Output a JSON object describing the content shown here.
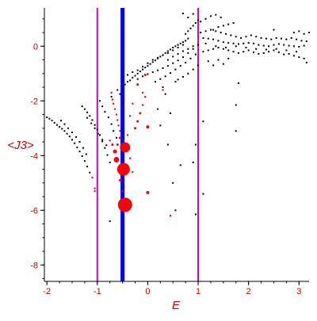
{
  "chart_data": {
    "type": "scatter",
    "xlabel": "E",
    "ylabel": "<J3>",
    "xlim": [
      -2.05,
      3.2
    ],
    "ylim": [
      -8.6,
      1.4
    ],
    "x_ticks": [
      -2,
      -1,
      0,
      1,
      2,
      3
    ],
    "y_ticks": [
      0,
      -2,
      -4,
      -6,
      -8
    ],
    "grid": false,
    "vertical_lines": [
      {
        "x": -1.0,
        "color": "#cc00cc"
      },
      {
        "x": -0.5,
        "color": "#0000ff"
      },
      {
        "x": 1.0,
        "color": "#cc00cc"
      }
    ],
    "series": [
      {
        "color": "#000000",
        "marker": "dot",
        "points": [
          [
            -2.0,
            -2.6
          ],
          [
            -1.95,
            -2.65
          ],
          [
            -1.9,
            -2.72
          ],
          [
            -1.85,
            -2.8
          ],
          [
            -1.8,
            -2.88
          ],
          [
            -1.75,
            -2.95
          ],
          [
            -1.7,
            -3.02
          ],
          [
            -1.65,
            -3.1
          ],
          [
            -1.6,
            -3.2
          ],
          [
            -1.55,
            -3.3
          ],
          [
            -1.5,
            -3.42
          ],
          [
            -1.45,
            -3.55
          ],
          [
            -1.4,
            -3.7
          ],
          [
            -1.35,
            -3.85
          ],
          [
            -1.3,
            -4.02
          ],
          [
            -1.25,
            -4.2
          ],
          [
            -1.2,
            -4.4
          ],
          [
            -1.15,
            -4.62
          ],
          [
            -1.72,
            -2.72
          ],
          [
            -1.65,
            -2.85
          ],
          [
            -1.58,
            -3.0
          ],
          [
            -1.5,
            -3.15
          ],
          [
            -1.42,
            -3.32
          ],
          [
            -1.35,
            -3.5
          ],
          [
            -1.28,
            -3.72
          ],
          [
            -1.22,
            -3.95
          ],
          [
            -1.3,
            -2.2
          ],
          [
            -1.25,
            -2.3
          ],
          [
            -1.2,
            -2.42
          ],
          [
            -1.15,
            -2.55
          ],
          [
            -1.1,
            -2.7
          ],
          [
            -1.05,
            -2.88
          ],
          [
            -1.0,
            -3.05
          ],
          [
            -0.95,
            -3.25
          ],
          [
            -0.9,
            -3.48
          ],
          [
            -0.85,
            -3.72
          ],
          [
            -0.8,
            -3.98
          ],
          [
            -0.75,
            -4.25
          ],
          [
            -1.2,
            -2.62
          ],
          [
            -1.12,
            -2.82
          ],
          [
            -1.05,
            -3.0
          ],
          [
            -0.98,
            -3.2
          ],
          [
            -0.9,
            -3.42
          ],
          [
            -0.82,
            -3.62
          ],
          [
            -0.95,
            -2.0
          ],
          [
            -0.9,
            -2.2
          ],
          [
            -0.85,
            -2.4
          ],
          [
            -0.78,
            -2.6
          ],
          [
            -0.72,
            -2.85
          ],
          [
            -0.68,
            -3.1
          ],
          [
            -0.62,
            -3.35
          ],
          [
            -0.75,
            -6.4
          ],
          [
            -0.72,
            -1.85
          ],
          [
            -0.55,
            -1.75
          ],
          [
            -0.5,
            -2.1
          ],
          [
            -0.6,
            -1.6
          ],
          [
            -0.5,
            -1.5
          ],
          [
            -0.45,
            -1.4
          ],
          [
            -0.4,
            -1.3
          ],
          [
            -0.35,
            -1.25
          ],
          [
            -0.3,
            -1.15
          ],
          [
            -0.25,
            -1.08
          ],
          [
            -0.2,
            -1.0
          ],
          [
            -0.15,
            -0.92
          ],
          [
            -0.1,
            -0.85
          ],
          [
            -0.05,
            -0.78
          ],
          [
            0.0,
            -0.72
          ],
          [
            0.05,
            -0.65
          ],
          [
            0.1,
            -0.58
          ],
          [
            0.15,
            -0.52
          ],
          [
            0.2,
            -0.45
          ],
          [
            0.25,
            -0.38
          ],
          [
            0.3,
            -0.32
          ],
          [
            0.35,
            -0.25
          ],
          [
            0.4,
            -0.18
          ],
          [
            0.45,
            -0.12
          ],
          [
            0.5,
            -0.05
          ],
          [
            0.55,
            0.0
          ],
          [
            0.6,
            0.05
          ],
          [
            0.65,
            0.1
          ],
          [
            0.7,
            0.15
          ],
          [
            0.75,
            0.2
          ],
          [
            0.8,
            0.28
          ],
          [
            -0.4,
            -1.05
          ],
          [
            -0.3,
            -0.95
          ],
          [
            -0.2,
            -0.88
          ],
          [
            -0.1,
            -0.75
          ],
          [
            0.0,
            -0.62
          ],
          [
            0.1,
            -0.5
          ],
          [
            0.2,
            -0.42
          ],
          [
            0.3,
            -0.33
          ],
          [
            0.4,
            -0.25
          ],
          [
            0.5,
            -0.15
          ],
          [
            0.6,
            -0.05
          ],
          [
            0.7,
            0.05
          ],
          [
            -0.2,
            -1.2
          ],
          [
            -0.1,
            -1.1
          ],
          [
            0.0,
            -1.02
          ],
          [
            0.1,
            -0.95
          ],
          [
            0.2,
            -0.88
          ],
          [
            0.3,
            -0.8
          ],
          [
            0.4,
            -0.72
          ],
          [
            0.5,
            -0.62
          ],
          [
            0.6,
            -0.52
          ],
          [
            0.7,
            -0.4
          ],
          [
            0.8,
            -0.25
          ],
          [
            0.9,
            -0.1
          ],
          [
            0.15,
            -1.3
          ],
          [
            0.25,
            -1.2
          ],
          [
            0.35,
            -1.1
          ],
          [
            0.45,
            -0.98
          ],
          [
            0.55,
            -0.85
          ],
          [
            0.65,
            -0.72
          ],
          [
            0.75,
            -0.6
          ],
          [
            0.85,
            -0.45
          ],
          [
            0.95,
            -0.3
          ],
          [
            0.55,
            -1.3
          ],
          [
            0.6,
            -1.22
          ],
          [
            0.7,
            -1.12
          ],
          [
            0.8,
            -1.0
          ],
          [
            0.9,
            -0.85
          ],
          [
            1.0,
            -0.7
          ],
          [
            0.4,
            -0.5
          ],
          [
            0.5,
            -0.38
          ],
          [
            0.6,
            -0.28
          ],
          [
            0.7,
            -0.18
          ],
          [
            0.8,
            -0.1
          ],
          [
            0.9,
            0.0
          ],
          [
            1.0,
            0.05
          ],
          [
            0.75,
            0.45
          ],
          [
            0.8,
            0.55
          ],
          [
            0.85,
            0.65
          ],
          [
            0.9,
            0.75
          ],
          [
            0.95,
            0.85
          ],
          [
            1.05,
            0.9
          ],
          [
            1.15,
            1.0
          ],
          [
            1.25,
            1.1
          ],
          [
            1.35,
            1.15
          ],
          [
            1.45,
            1.05
          ],
          [
            0.8,
            1.05
          ],
          [
            0.9,
            1.18
          ],
          [
            1.3,
            0.6
          ],
          [
            1.4,
            0.7
          ],
          [
            1.5,
            0.75
          ],
          [
            1.6,
            0.8
          ],
          [
            1.7,
            0.85
          ],
          [
            1.05,
            0.5
          ],
          [
            1.15,
            0.55
          ],
          [
            1.25,
            0.6
          ],
          [
            1.35,
            0.55
          ],
          [
            1.45,
            0.5
          ],
          [
            1.55,
            0.45
          ],
          [
            1.65,
            0.4
          ],
          [
            1.75,
            0.35
          ],
          [
            1.85,
            0.3
          ],
          [
            1.95,
            0.35
          ],
          [
            2.05,
            0.4
          ],
          [
            2.15,
            0.35
          ],
          [
            2.25,
            0.3
          ],
          [
            2.35,
            0.28
          ],
          [
            2.45,
            0.25
          ],
          [
            2.55,
            0.3
          ],
          [
            2.65,
            0.28
          ],
          [
            2.75,
            0.25
          ],
          [
            2.85,
            0.3
          ],
          [
            2.95,
            0.25
          ],
          [
            3.05,
            0.2
          ],
          [
            3.15,
            0.18
          ],
          [
            1.1,
            0.3
          ],
          [
            1.2,
            0.28
          ],
          [
            1.3,
            0.25
          ],
          [
            1.4,
            0.2
          ],
          [
            1.5,
            0.15
          ],
          [
            1.6,
            0.12
          ],
          [
            1.7,
            0.1
          ],
          [
            1.8,
            0.08
          ],
          [
            1.9,
            0.1
          ],
          [
            2.0,
            0.12
          ],
          [
            2.1,
            0.1
          ],
          [
            2.2,
            0.05
          ],
          [
            2.3,
            0.02
          ],
          [
            2.4,
            0.0
          ],
          [
            2.5,
            0.05
          ],
          [
            2.6,
            0.08
          ],
          [
            2.7,
            0.05
          ],
          [
            2.8,
            0.02
          ],
          [
            2.9,
            0.0
          ],
          [
            3.0,
            -0.02
          ],
          [
            3.1,
            0.02
          ],
          [
            1.1,
            -0.2
          ],
          [
            1.2,
            -0.15
          ],
          [
            1.3,
            -0.1
          ],
          [
            1.4,
            -0.05
          ],
          [
            1.5,
            -0.1
          ],
          [
            1.6,
            -0.15
          ],
          [
            1.7,
            -0.2
          ],
          [
            1.8,
            -0.25
          ],
          [
            1.9,
            -0.2
          ],
          [
            2.0,
            -0.15
          ],
          [
            2.1,
            -0.22
          ],
          [
            2.2,
            -0.28
          ],
          [
            2.3,
            -0.25
          ],
          [
            2.4,
            -0.2
          ],
          [
            2.5,
            -0.15
          ],
          [
            2.6,
            -0.22
          ],
          [
            2.7,
            -0.3
          ],
          [
            2.8,
            -0.28
          ],
          [
            2.9,
            -0.35
          ],
          [
            3.0,
            -0.4
          ],
          [
            3.1,
            -0.45
          ],
          [
            3.15,
            -0.6
          ],
          [
            1.15,
            0.1
          ],
          [
            1.35,
            0.0
          ],
          [
            1.55,
            -0.05
          ],
          [
            1.75,
            0.0
          ],
          [
            1.95,
            -0.05
          ],
          [
            2.15,
            -0.1
          ],
          [
            2.35,
            -0.12
          ],
          [
            2.55,
            -0.1
          ],
          [
            2.75,
            -0.15
          ],
          [
            2.95,
            -0.2
          ],
          [
            1.2,
            -0.55
          ],
          [
            1.4,
            -0.5
          ],
          [
            1.6,
            -0.45
          ],
          [
            1.3,
            -0.7
          ],
          [
            1.5,
            -0.65
          ],
          [
            1.8,
            -1.35
          ],
          [
            1.75,
            -2.15
          ],
          [
            1.75,
            -3.1
          ],
          [
            1.1,
            -2.75
          ],
          [
            1.1,
            -5.4
          ],
          [
            0.9,
            -4.25
          ],
          [
            0.95,
            -3.6
          ],
          [
            0.5,
            -5.0
          ],
          [
            0.55,
            -6.0
          ],
          [
            0.95,
            -6.15
          ],
          [
            0.65,
            -4.35
          ],
          [
            0.4,
            -3.6
          ],
          [
            0.25,
            -2.9
          ],
          [
            0.2,
            -2.3
          ],
          [
            0.35,
            -1.75
          ],
          [
            0.3,
            -1.5
          ],
          [
            0.45,
            -2.45
          ],
          [
            0.7,
            1.2
          ],
          [
            1.0,
            0.95
          ],
          [
            2.5,
            0.6
          ],
          [
            2.9,
            0.5
          ],
          [
            3.0,
            0.55
          ],
          [
            3.1,
            0.45
          ],
          [
            3.2,
            0.5
          ]
        ]
      },
      {
        "color": "#ff0000",
        "marker": "circle",
        "points": [
          [
            -0.45,
            -5.8,
            9
          ],
          [
            -0.48,
            -4.5,
            8
          ],
          [
            -0.45,
            -3.7,
            6.5
          ],
          [
            -0.62,
            -4.15,
            3.5
          ],
          [
            -0.65,
            -3.85,
            2.5
          ],
          [
            -0.7,
            -3.6,
            1.5
          ],
          [
            -0.6,
            -3.6,
            1.5
          ],
          [
            -0.55,
            -3.35,
            1.5
          ],
          [
            -0.75,
            -3.45,
            1.2
          ],
          [
            -0.55,
            -4.9,
            1.5
          ],
          [
            -0.5,
            -5.3,
            1.2
          ],
          [
            -0.55,
            -3.1,
            1.2
          ],
          [
            -0.58,
            -2.9,
            1.2
          ],
          [
            -0.6,
            -2.7,
            1.2
          ],
          [
            -0.62,
            -2.5,
            1.2
          ],
          [
            -0.65,
            -2.3,
            1.2
          ],
          [
            -0.68,
            -2.1,
            1.2
          ],
          [
            -0.7,
            -1.95,
            1.2
          ],
          [
            -0.72,
            -1.7,
            1.2
          ],
          [
            -0.2,
            -1.4,
            1.5
          ],
          [
            -0.1,
            -1.7,
            1.2
          ],
          [
            -0.05,
            -1.85,
            1.2
          ],
          [
            -0.1,
            -2.15,
            1.2
          ],
          [
            -0.15,
            -2.45,
            1.5
          ],
          [
            -0.2,
            -2.75,
            1.5
          ],
          [
            -0.25,
            -3.0,
            1.5
          ],
          [
            0.0,
            -2.95,
            2
          ],
          [
            0.0,
            -5.35,
            2
          ],
          [
            0.45,
            -6.2,
            1.2
          ],
          [
            -1.05,
            -5.3,
            1.2
          ],
          [
            -1.05,
            -5.2,
            1.2
          ],
          [
            -1.1,
            -4.8,
            1.2
          ],
          [
            -0.3,
            -4.6,
            1.2
          ],
          [
            -0.35,
            -4.1,
            1.2
          ],
          [
            -0.4,
            -3.25,
            1.2
          ],
          [
            -0.35,
            -2.55,
            1.2
          ],
          [
            -0.3,
            -2.1,
            1.2
          ],
          [
            -0.05,
            -1.05,
            1.5
          ],
          [
            0.3,
            -1.6,
            1.2
          ]
        ]
      }
    ]
  }
}
